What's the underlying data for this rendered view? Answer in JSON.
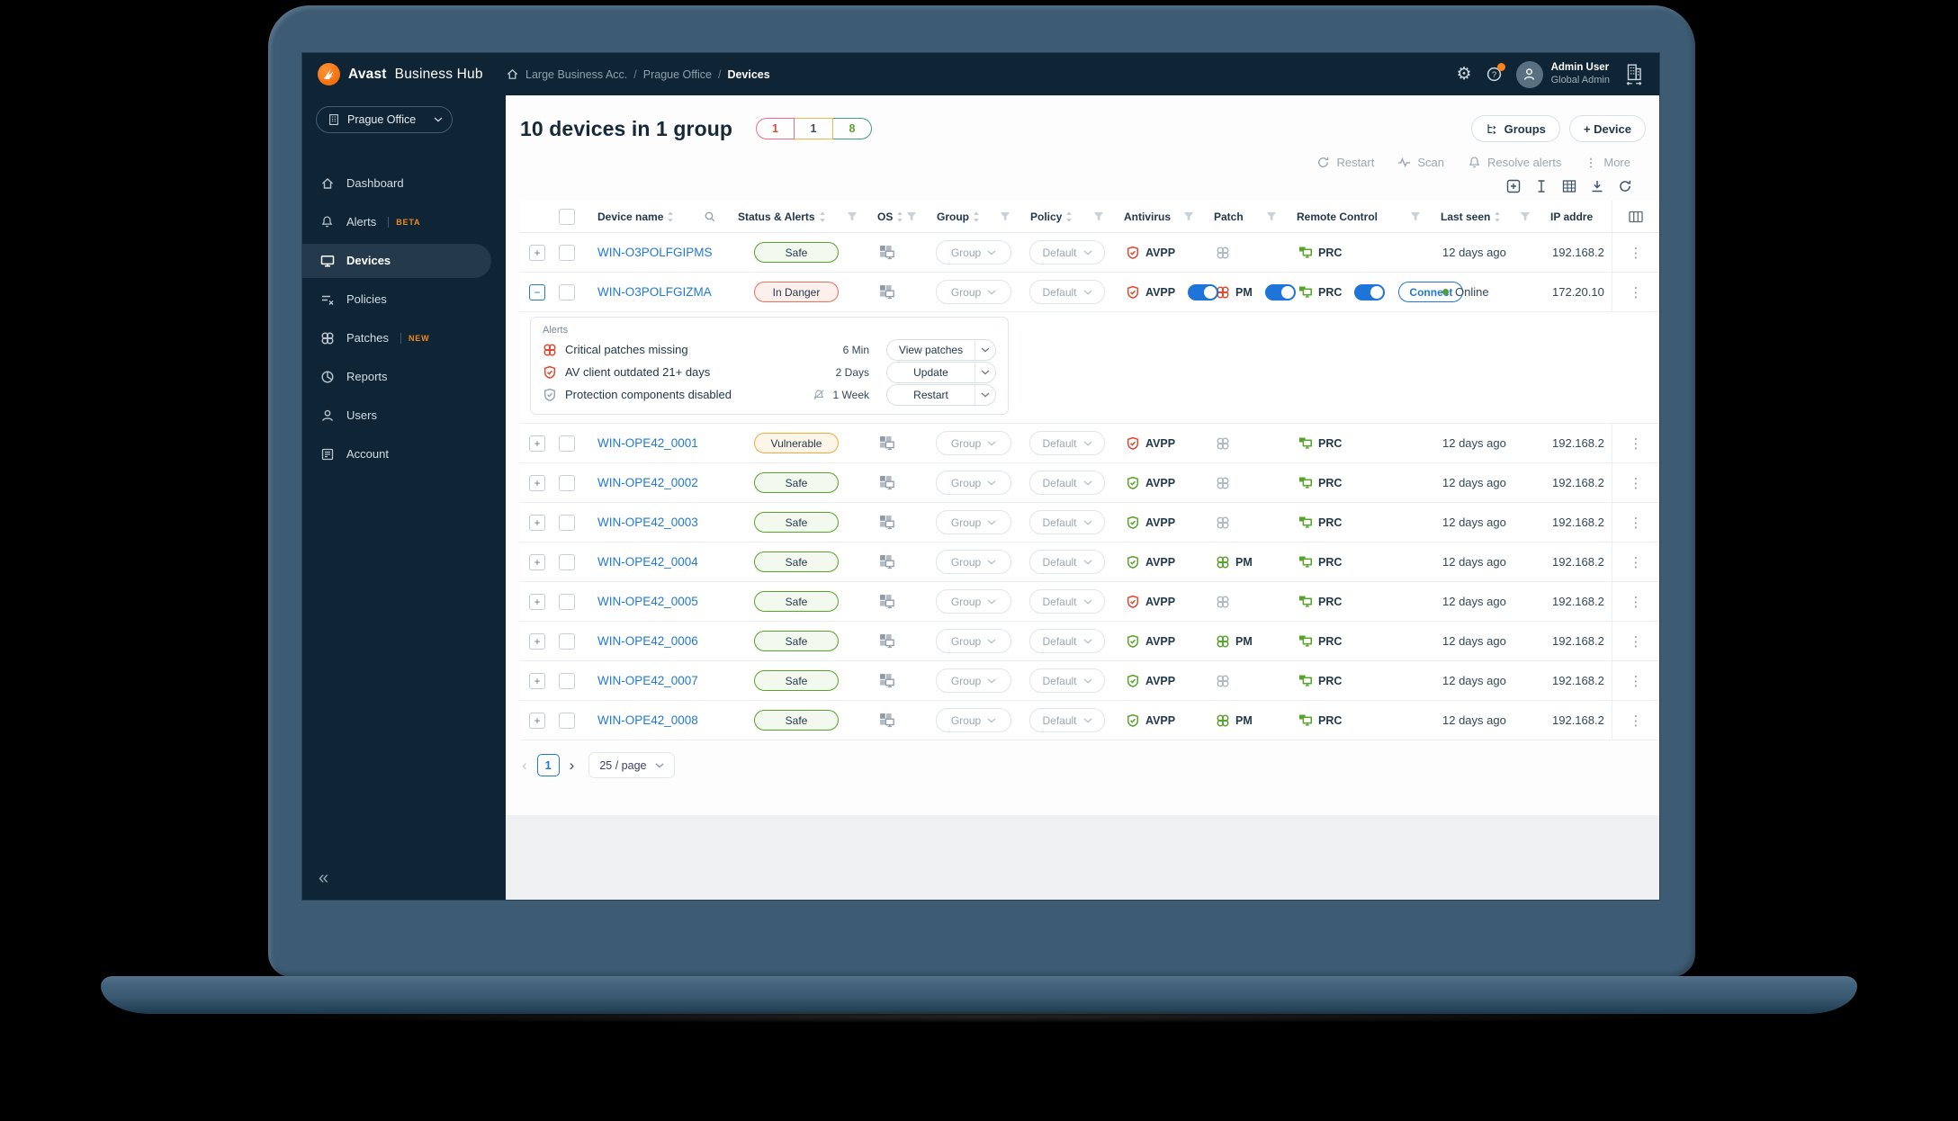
{
  "colors": {
    "brand_orange": "#f7831c",
    "accent_blue": "#1f74d9",
    "danger": "#e0492e",
    "warning": "#f2a93b",
    "safe": "#58a32c",
    "sidebar_navy": "#0f2435"
  },
  "topbar": {
    "brand_bold": "Avast",
    "brand_rest": "Business Hub",
    "breadcrumbs": [
      "Large Business Acc.",
      "Prague Office",
      "Devices"
    ],
    "user_name": "Admin User",
    "user_role": "Global Admin"
  },
  "sidebar": {
    "org_selector": "Prague Office",
    "items": [
      {
        "label": "Dashboard",
        "icon": "home-icon",
        "active": false,
        "badge": ""
      },
      {
        "label": "Alerts",
        "icon": "bell-icon",
        "active": false,
        "badge": "BETA"
      },
      {
        "label": "Devices",
        "icon": "monitor-icon",
        "active": true,
        "badge": ""
      },
      {
        "label": "Policies",
        "icon": "policies-icon",
        "active": false,
        "badge": ""
      },
      {
        "label": "Patches",
        "icon": "patch-icon",
        "active": false,
        "badge": "NEW"
      },
      {
        "label": "Reports",
        "icon": "reports-icon",
        "active": false,
        "badge": ""
      },
      {
        "label": "Users",
        "icon": "users-icon",
        "active": false,
        "badge": ""
      },
      {
        "label": "Account",
        "icon": "account-icon",
        "active": false,
        "badge": ""
      }
    ]
  },
  "page": {
    "title": "10 devices in 1 group",
    "status_badges": [
      {
        "value": "1",
        "type": "danger"
      },
      {
        "value": "1",
        "type": "warning"
      },
      {
        "value": "8",
        "type": "safe"
      }
    ],
    "groups_button": "Groups",
    "device_button": "+ Device",
    "bulk_actions": [
      {
        "label": "Restart",
        "icon": "restart-icon"
      },
      {
        "label": "Scan",
        "icon": "scan-icon"
      },
      {
        "label": "Resolve alerts",
        "icon": "bell-icon"
      },
      {
        "label": "More",
        "icon": "more-icon"
      }
    ]
  },
  "table": {
    "columns": [
      {
        "label": "Device name",
        "sort": true,
        "search": true,
        "filter": false
      },
      {
        "label": "Status & Alerts",
        "sort": true,
        "search": false,
        "filter": true
      },
      {
        "label": "OS",
        "sort": true,
        "search": false,
        "filter": true
      },
      {
        "label": "Group",
        "sort": true,
        "search": false,
        "filter": true
      },
      {
        "label": "Policy",
        "sort": true,
        "search": false,
        "filter": true
      },
      {
        "label": "Antivirus",
        "sort": false,
        "search": false,
        "filter": true
      },
      {
        "label": "Patch",
        "sort": false,
        "search": false,
        "filter": true
      },
      {
        "label": "Remote Control",
        "sort": false,
        "search": false,
        "filter": true
      },
      {
        "label": "Last seen",
        "sort": true,
        "search": false,
        "filter": true
      },
      {
        "label": "IP addre",
        "sort": false,
        "search": false,
        "filter": false
      }
    ],
    "rows": [
      {
        "name": "WIN-O3POLFGIPMS",
        "status": "Safe",
        "status_type": "safe",
        "expanded": false,
        "group": "Group",
        "policy": "Default",
        "av_label": "AVPP",
        "av_state": "danger",
        "av_toggle": false,
        "patch_label": "",
        "patch_state": "none",
        "patch_toggle": false,
        "rc_label": "PRC",
        "rc_toggle": false,
        "connect_label": "",
        "online": false,
        "last_seen": "12 days ago",
        "ip": "192.168.2"
      },
      {
        "name": "WIN-O3POLFGIZMA",
        "status": "In Danger",
        "status_type": "danger",
        "expanded": true,
        "group": "Group",
        "policy": "Default",
        "av_label": "AVPP",
        "av_state": "danger",
        "av_toggle": true,
        "patch_label": "PM",
        "patch_state": "danger",
        "patch_toggle": true,
        "rc_label": "PRC",
        "rc_toggle": true,
        "connect_label": "Connect",
        "online": true,
        "last_seen": "Online",
        "ip": "172.20.10"
      },
      {
        "name": "WIN-OPE42_0001",
        "status": "Vulnerable",
        "status_type": "warning",
        "expanded": false,
        "group": "Group",
        "policy": "Default",
        "av_label": "AVPP",
        "av_state": "danger",
        "av_toggle": false,
        "patch_label": "",
        "patch_state": "none",
        "patch_toggle": false,
        "rc_label": "PRC",
        "rc_toggle": false,
        "connect_label": "",
        "online": false,
        "last_seen": "12 days ago",
        "ip": "192.168.2"
      },
      {
        "name": "WIN-OPE42_0002",
        "status": "Safe",
        "status_type": "safe",
        "expanded": false,
        "group": "Group",
        "policy": "Default",
        "av_label": "AVPP",
        "av_state": "ok",
        "av_toggle": false,
        "patch_label": "",
        "patch_state": "none",
        "patch_toggle": false,
        "rc_label": "PRC",
        "rc_toggle": false,
        "connect_label": "",
        "online": false,
        "last_seen": "12 days ago",
        "ip": "192.168.2"
      },
      {
        "name": "WIN-OPE42_0003",
        "status": "Safe",
        "status_type": "safe",
        "expanded": false,
        "group": "Group",
        "policy": "Default",
        "av_label": "AVPP",
        "av_state": "ok",
        "av_toggle": false,
        "patch_label": "",
        "patch_state": "none",
        "patch_toggle": false,
        "rc_label": "PRC",
        "rc_toggle": false,
        "connect_label": "",
        "online": false,
        "last_seen": "12 days ago",
        "ip": "192.168.2"
      },
      {
        "name": "WIN-OPE42_0004",
        "status": "Safe",
        "status_type": "safe",
        "expanded": false,
        "group": "Group",
        "policy": "Default",
        "av_label": "AVPP",
        "av_state": "ok",
        "av_toggle": false,
        "patch_label": "PM",
        "patch_state": "ok",
        "patch_toggle": false,
        "rc_label": "PRC",
        "rc_toggle": false,
        "connect_label": "",
        "online": false,
        "last_seen": "12 days ago",
        "ip": "192.168.2"
      },
      {
        "name": "WIN-OPE42_0005",
        "status": "Safe",
        "status_type": "safe",
        "expanded": false,
        "group": "Group",
        "policy": "Default",
        "av_label": "AVPP",
        "av_state": "danger",
        "av_toggle": false,
        "patch_label": "",
        "patch_state": "none",
        "patch_toggle": false,
        "rc_label": "PRC",
        "rc_toggle": false,
        "connect_label": "",
        "online": false,
        "last_seen": "12 days ago",
        "ip": "192.168.2"
      },
      {
        "name": "WIN-OPE42_0006",
        "status": "Safe",
        "status_type": "safe",
        "expanded": false,
        "group": "Group",
        "policy": "Default",
        "av_label": "AVPP",
        "av_state": "ok",
        "av_toggle": false,
        "patch_label": "PM",
        "patch_state": "ok",
        "patch_toggle": false,
        "rc_label": "PRC",
        "rc_toggle": false,
        "connect_label": "",
        "online": false,
        "last_seen": "12 days ago",
        "ip": "192.168.2"
      },
      {
        "name": "WIN-OPE42_0007",
        "status": "Safe",
        "status_type": "safe",
        "expanded": false,
        "group": "Group",
        "policy": "Default",
        "av_label": "AVPP",
        "av_state": "ok",
        "av_toggle": false,
        "patch_label": "",
        "patch_state": "none",
        "patch_toggle": false,
        "rc_label": "PRC",
        "rc_toggle": false,
        "connect_label": "",
        "online": false,
        "last_seen": "12 days ago",
        "ip": "192.168.2"
      },
      {
        "name": "WIN-OPE42_0008",
        "status": "Safe",
        "status_type": "safe",
        "expanded": false,
        "group": "Group",
        "policy": "Default",
        "av_label": "AVPP",
        "av_state": "ok",
        "av_toggle": false,
        "patch_label": "PM",
        "patch_state": "ok",
        "patch_toggle": false,
        "rc_label": "PRC",
        "rc_toggle": false,
        "connect_label": "",
        "online": false,
        "last_seen": "12 days ago",
        "ip": "192.168.2"
      }
    ]
  },
  "alerts_panel": {
    "title": "Alerts",
    "rows": [
      {
        "icon": "patch-icon",
        "severity": "danger",
        "muted_bell": false,
        "text": "Critical patches missing",
        "age": "6 Min",
        "action": "View patches"
      },
      {
        "icon": "shield-icon",
        "severity": "danger",
        "muted_bell": false,
        "text": "AV client outdated 21+ days",
        "age": "2 Days",
        "action": "Update"
      },
      {
        "icon": "shield-icon",
        "severity": "muted",
        "muted_bell": true,
        "text": "Protection components disabled",
        "age": "1 Week",
        "action": "Restart"
      }
    ]
  },
  "pagination": {
    "page": "1",
    "page_size": "25 / page"
  }
}
